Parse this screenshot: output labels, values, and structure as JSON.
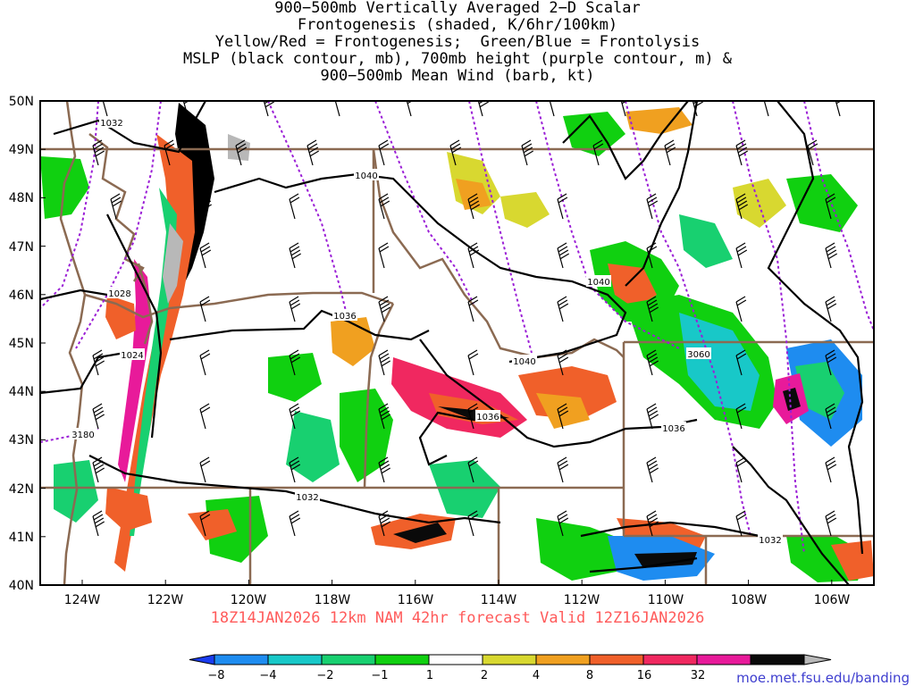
{
  "title": {
    "lines": [
      "900−500mb Vertically Averaged 2−D Scalar",
      "Frontogenesis (shaded, K/6hr/100km)",
      "Yellow/Red = Frontogenesis;  Green/Blue = Frontolysis",
      "MSLP (black contour, mb), 700mb height (purple contour, m) &",
      "900−500mb Mean Wind (barb, kt)"
    ]
  },
  "axes": {
    "lat_labels": [
      "50N",
      "49N",
      "48N",
      "47N",
      "46N",
      "45N",
      "44N",
      "43N",
      "42N",
      "41N",
      "40N"
    ],
    "lon_labels": [
      "124W",
      "122W",
      "120W",
      "118W",
      "116W",
      "114W",
      "112W",
      "110W",
      "108W",
      "106W"
    ],
    "lat_range": [
      40,
      50
    ],
    "lon_range": [
      -125,
      -105
    ]
  },
  "contour_labels": {
    "mslp": [
      "1032",
      "1040",
      "1028",
      "1024",
      "1036",
      "1040",
      "1040",
      "1036",
      "1036",
      "1032",
      "1032"
    ],
    "height": [
      "3060",
      "3180"
    ]
  },
  "run_info": "18Z14JAN2026 12km NAM 42hr forecast Valid 12Z16JAN2026",
  "colorbar": {
    "labels": [
      "−8",
      "−4",
      "−2",
      "−1",
      "1",
      "2",
      "4",
      "8",
      "16",
      "32"
    ],
    "colors": [
      "#1a3cf0",
      "#1e8cf0",
      "#18c8c8",
      "#18d070",
      "#10d010",
      "#ffffff",
      "#d8d830",
      "#f0a020",
      "#f0602a",
      "#f02860",
      "#e81a9a",
      "#0a0a0a",
      "#b8b8b8"
    ]
  },
  "credit": "moe.met.fsu.edu/banding",
  "colors": {
    "boundary": "#8b6a52",
    "mslp_contour": "#000000",
    "height_contour": "#9b1fd6",
    "run_text": "#ff5a5a",
    "credit": "#3e3ecf"
  }
}
